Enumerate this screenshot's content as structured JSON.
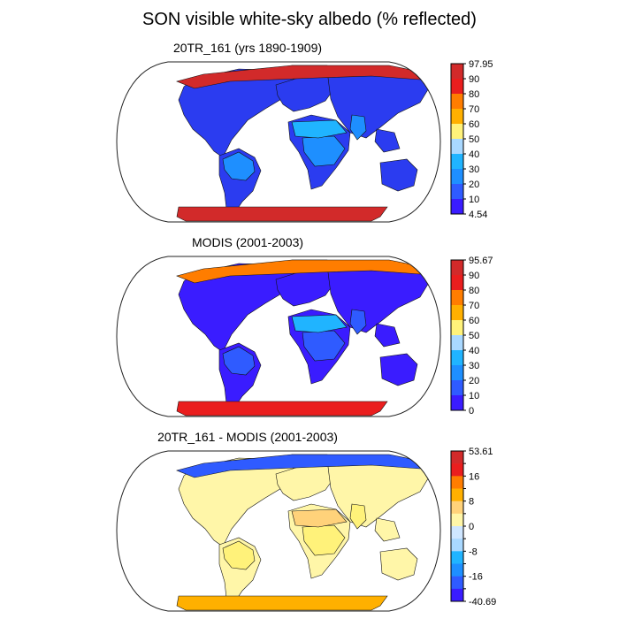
{
  "title": "SON visible white-sky albedo (% reflected)",
  "panels": [
    {
      "id": "model",
      "title": "20TR_161 (yrs 1890-1909)",
      "colorbar": {
        "labels": [
          "97.95",
          "90",
          "80",
          "70",
          "60",
          "50",
          "40",
          "30",
          "20",
          "10",
          "4.54"
        ],
        "colors": [
          "#d22a2a",
          "#ea1e1e",
          "#ff7d00",
          "#ffb000",
          "#fff27a",
          "#a9d8ff",
          "#20b4ff",
          "#1e8fff",
          "#2f5bff",
          "#3a1cff"
        ]
      }
    },
    {
      "id": "obs",
      "title": "MODIS (2001-2003)",
      "colorbar": {
        "labels": [
          "95.67",
          "90",
          "80",
          "70",
          "60",
          "50",
          "40",
          "30",
          "20",
          "10",
          "0"
        ],
        "colors": [
          "#d22a2a",
          "#ea1e1e",
          "#ff7d00",
          "#ffb000",
          "#fff27a",
          "#a9d8ff",
          "#20b4ff",
          "#1e8fff",
          "#2f5bff",
          "#3a1cff"
        ]
      }
    },
    {
      "id": "diff",
      "title": "20TR_161 - MODIS (2001-2003)",
      "colorbar": {
        "labels": [
          "53.61",
          "",
          "16",
          "",
          "8",
          "",
          "0",
          "",
          "-8",
          "",
          "-16",
          "",
          "-40.69"
        ],
        "colors": [
          "#d22a2a",
          "#ea1e1e",
          "#ff7d00",
          "#ffb000",
          "#ffd27a",
          "#fff6a8",
          "#cfe6ff",
          "#a9d8ff",
          "#20b4ff",
          "#1e8fff",
          "#2f5bff",
          "#3a1cff"
        ]
      }
    }
  ],
  "fills": {
    "model": {
      "land": "#2b3cf0",
      "tropics": "#1e8fff",
      "arctic": "#d22a2a",
      "antarctica": "#d22a2a",
      "desert": "#20b4ff"
    },
    "obs": {
      "land": "#3a1cff",
      "tropics": "#2f5bff",
      "arctic": "#ff7d00",
      "antarctica": "#ea1e1e",
      "desert": "#20b4ff"
    },
    "diff": {
      "land": "#fff6a8",
      "tropics": "#fff27a",
      "arctic": "#2f5bff",
      "antarctica": "#ffb000",
      "desert": "#ffd27a"
    }
  }
}
